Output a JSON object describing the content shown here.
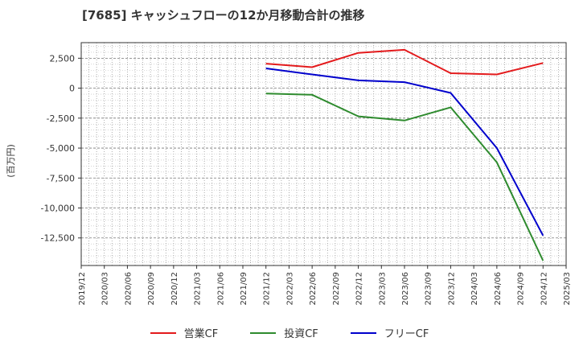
{
  "chart_data": {
    "type": "line",
    "title": "[7685]  キャッシュフローの12か月移動合計の推移",
    "ylabel": "(百万円)",
    "xlabel": "",
    "ylim": [
      -14800,
      3800
    ],
    "y_ticks": [
      2500,
      0,
      -2500,
      -5000,
      -7500,
      -10000,
      -12500
    ],
    "y_tick_labels": [
      "2,500",
      "0",
      "-2,500",
      "-5,000",
      "-7,500",
      "-10,000",
      "-12,500"
    ],
    "x_tick_labels": [
      "2019/12",
      "2020/03",
      "2020/06",
      "2020/09",
      "2020/12",
      "2021/03",
      "2021/06",
      "2021/09",
      "2021/12",
      "2022/03",
      "2022/06",
      "2022/09",
      "2022/12",
      "2023/03",
      "2023/06",
      "2023/09",
      "2023/12",
      "2024/03",
      "2024/06",
      "2024/09",
      "2024/12",
      "2025/03"
    ],
    "x_points": [
      "2021/12",
      "2022/06",
      "2022/12",
      "2023/06",
      "2023/12",
      "2024/06",
      "2024/12"
    ],
    "series": [
      {
        "name": "営業CF",
        "color": "#e31a1c",
        "values": [
          2050,
          1750,
          2950,
          3200,
          1250,
          1150,
          2100
        ]
      },
      {
        "name": "投資CF",
        "color": "#2e8b2e",
        "values": [
          -450,
          -550,
          -2350,
          -2700,
          -1600,
          -6200,
          -14400
        ]
      },
      {
        "name": "フリーCF",
        "color": "#0000cc",
        "values": [
          1650,
          1150,
          650,
          500,
          -400,
          -5000,
          -12300
        ]
      }
    ],
    "grid": true,
    "legend_position": "bottom"
  }
}
